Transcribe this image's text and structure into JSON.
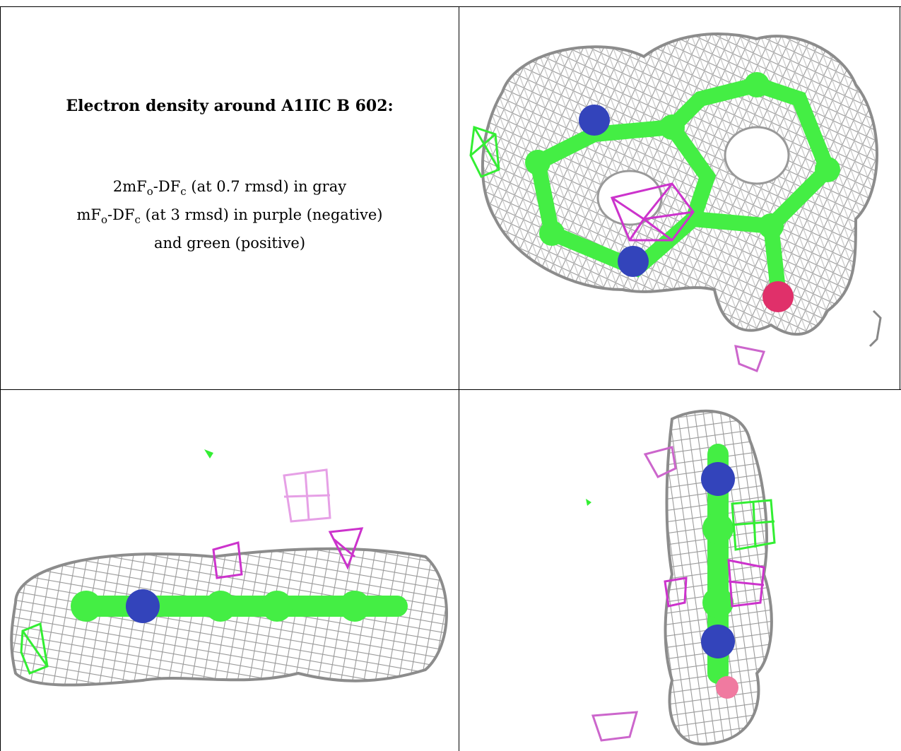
{
  "caption": {
    "title": "Electron density around A1IIC B 602:",
    "line1_a": "2mF",
    "line1_b": "o",
    "line1_c": "-DF",
    "line1_d": "c",
    "line1_e": " (at 0.7 rmsd) in gray",
    "line2_a": "mF",
    "line2_b": "o",
    "line2_c": "-DF",
    "line2_d": "c",
    "line2_e": " (at 3 rmsd) in purple (negative)",
    "line3": "and green (positive)"
  },
  "colors": {
    "map_2fofc": "#a9a9a9",
    "map_negative": "#cc33cc",
    "map_positive": "#33ee33",
    "carbon": "#44ee44",
    "nitrogen": "#3344bb",
    "oxygen": "#e0306a"
  },
  "panels": [
    "density-top-view",
    "density-side-view",
    "density-edge-view"
  ]
}
